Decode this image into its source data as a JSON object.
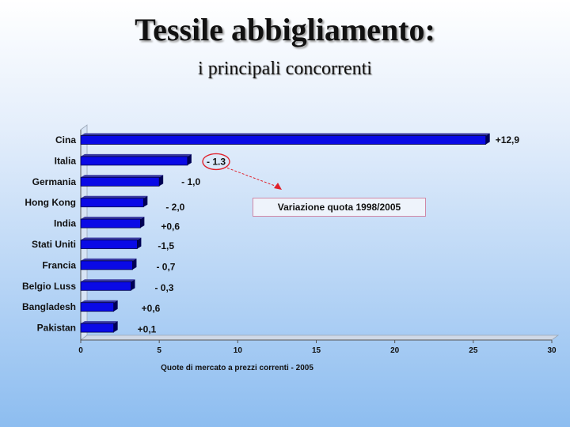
{
  "title": "Tessile abbigliamento:",
  "subtitle": "i principali concorrenti",
  "annotation_box": "Variazione quota 1998/2005",
  "highlight_label": "- 1.3",
  "colors": {
    "bar": "#0a0ae6",
    "bar_dark": "#000055",
    "highlight": "#e0202a"
  },
  "chart_data": {
    "type": "bar",
    "orientation": "horizontal",
    "categories": [
      "Cina",
      "Italia",
      "Germania",
      "Hong Kong",
      "India",
      "Stati Uniti",
      "Francia",
      "Belgio Luss",
      "Bangladesh",
      "Pakistan"
    ],
    "values": [
      25.8,
      6.8,
      5.0,
      4.0,
      3.8,
      3.6,
      3.3,
      3.2,
      2.1,
      2.1
    ],
    "data_labels": [
      "+12,9",
      "- 1.3",
      "- 1,0",
      "- 2,0",
      "+0,6",
      "-1,5",
      "- 0,7",
      "- 0,3",
      "+0,6",
      "+0,1"
    ],
    "xlim": [
      0,
      30
    ],
    "xticks": [
      0,
      5,
      10,
      15,
      20,
      25,
      30
    ],
    "xlabel": "Quote di mercato a prezzi correnti - 2005",
    "ylabel": "",
    "grid": false,
    "highlighted_category": "Italia"
  }
}
